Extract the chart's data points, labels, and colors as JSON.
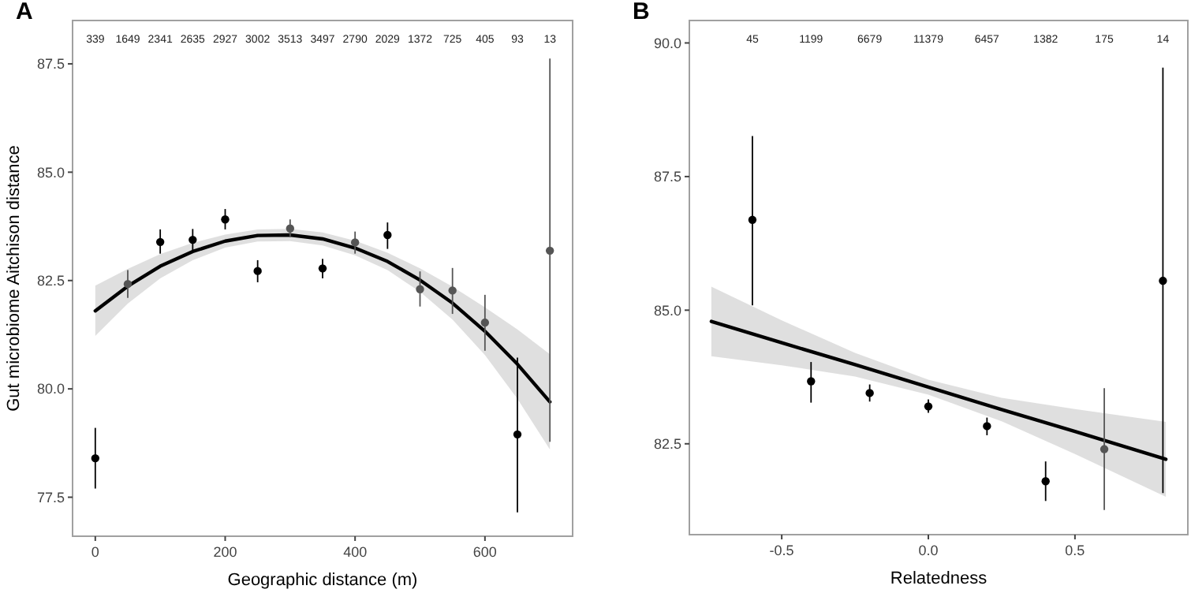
{
  "chart_data": [
    {
      "type": "scatter",
      "title": "A",
      "xlabel": "Geographic distance (m)",
      "ylabel": "Gut microbiome Aitchison distance",
      "xlim": [
        -35,
        735
      ],
      "ylim": [
        76.6,
        88.5
      ],
      "xticks": [
        0,
        200,
        400,
        600
      ],
      "yticks": [
        77.5,
        {
          "value": 80,
          "label": "80.0"
        },
        82.5,
        {
          "value": 85,
          "label": "85.0"
        },
        87.5
      ],
      "grid": false,
      "series": [
        {
          "marker": "circle",
          "x": [
            0,
            50,
            100,
            150,
            200,
            250,
            300,
            350,
            400,
            450,
            500,
            550,
            600,
            650,
            700
          ],
          "values": [
            78.4,
            82.42,
            83.39,
            83.44,
            83.91,
            82.72,
            83.7,
            82.78,
            83.38,
            83.55,
            82.3,
            82.27,
            81.53,
            78.95,
            83.19
          ],
          "errors": [
            [
              77.7,
              79.1
            ],
            [
              82.1,
              82.74
            ],
            [
              83.12,
              83.68
            ],
            [
              83.2,
              83.69
            ],
            [
              83.68,
              84.15
            ],
            [
              82.46,
              82.97
            ],
            [
              83.5,
              83.91
            ],
            [
              82.55,
              83.0
            ],
            [
              83.12,
              83.63
            ],
            [
              83.23,
              83.84
            ],
            [
              81.9,
              82.71
            ],
            [
              81.73,
              82.79
            ],
            [
              80.88,
              82.17
            ],
            [
              77.15,
              80.72
            ],
            [
              78.78,
              87.62
            ]
          ],
          "colors": [
            "#000000",
            "#555555",
            "#000000",
            "#000000",
            "#000000",
            "#000000",
            "#555555",
            "#000000",
            "#555555",
            "#000000",
            "#555555",
            "#555555",
            "#555555",
            "#000000",
            "#555555"
          ]
        },
        {
          "type": "line",
          "color": "#000000",
          "line_style": "solid",
          "x": [
            0,
            50,
            100,
            150,
            200,
            250,
            300,
            350,
            400,
            450,
            500,
            550,
            600,
            650,
            700
          ],
          "values": [
            81.8,
            82.37,
            82.83,
            83.17,
            83.41,
            83.54,
            83.55,
            83.46,
            83.25,
            82.94,
            82.51,
            81.98,
            81.33,
            80.57,
            79.7
          ],
          "lower": [
            81.22,
            81.97,
            82.55,
            82.97,
            83.26,
            83.4,
            83.41,
            83.31,
            83.08,
            82.74,
            82.24,
            81.6,
            80.78,
            79.77,
            78.6
          ],
          "upper": [
            82.38,
            82.77,
            83.11,
            83.37,
            83.56,
            83.68,
            83.69,
            83.61,
            83.42,
            83.14,
            82.78,
            82.36,
            81.88,
            81.37,
            80.8
          ]
        }
      ],
      "annotations": [
        "339",
        "1649",
        "2341",
        "2635",
        "2927",
        "3002",
        "3513",
        "3497",
        "2790",
        "2029",
        "1372",
        "725",
        "405",
        "93",
        "13"
      ]
    },
    {
      "type": "scatter",
      "title": "B",
      "xlabel": "Relatedness",
      "xlim": [
        -0.815,
        0.885
      ],
      "ylim": [
        80.8,
        90.42
      ],
      "xticks": [
        {
          "value": -0.5,
          "label": "-0.5"
        },
        {
          "value": 0,
          "label": "0.0"
        },
        {
          "value": 0.5,
          "label": "0.5"
        }
      ],
      "yticks": [
        {
          "value": 82.5,
          "label": "82.5"
        },
        {
          "value": 85,
          "label": "85.0"
        },
        {
          "value": 87.5,
          "label": "87.5"
        },
        {
          "value": 90,
          "label": "90.0"
        }
      ],
      "grid": false,
      "series": [
        {
          "marker": "circle",
          "x": [
            -0.6,
            -0.4,
            -0.2,
            0,
            0.2,
            0.4,
            0.6,
            0.8
          ],
          "values": [
            86.69,
            83.67,
            83.45,
            83.2,
            82.83,
            81.8,
            82.4,
            85.55
          ],
          "errors": [
            [
              85.09,
              88.26
            ],
            [
              83.27,
              84.03
            ],
            [
              83.29,
              83.61
            ],
            [
              83.08,
              83.33
            ],
            [
              82.66,
              82.99
            ],
            [
              81.43,
              82.17
            ],
            [
              81.26,
              83.54
            ],
            [
              81.58,
              89.54
            ]
          ],
          "colors": [
            "#000000",
            "#000000",
            "#000000",
            "#000000",
            "#000000",
            "#000000",
            "#555555",
            "#000000"
          ]
        },
        {
          "type": "line",
          "color": "#000000",
          "line_style": "solid",
          "x": [
            -0.74,
            -0.5,
            -0.25,
            0,
            0.25,
            0.5,
            0.81
          ],
          "values": [
            84.79,
            84.39,
            83.98,
            83.56,
            83.14,
            82.73,
            82.21
          ],
          "lower": [
            84.14,
            83.97,
            83.76,
            83.42,
            82.92,
            82.31,
            81.51
          ],
          "upper": [
            85.44,
            84.81,
            84.2,
            83.7,
            83.36,
            83.15,
            82.91
          ]
        }
      ],
      "annotations": [
        "45",
        "1199",
        "6679",
        "11379",
        "6457",
        "1382",
        "175",
        "14"
      ]
    }
  ]
}
